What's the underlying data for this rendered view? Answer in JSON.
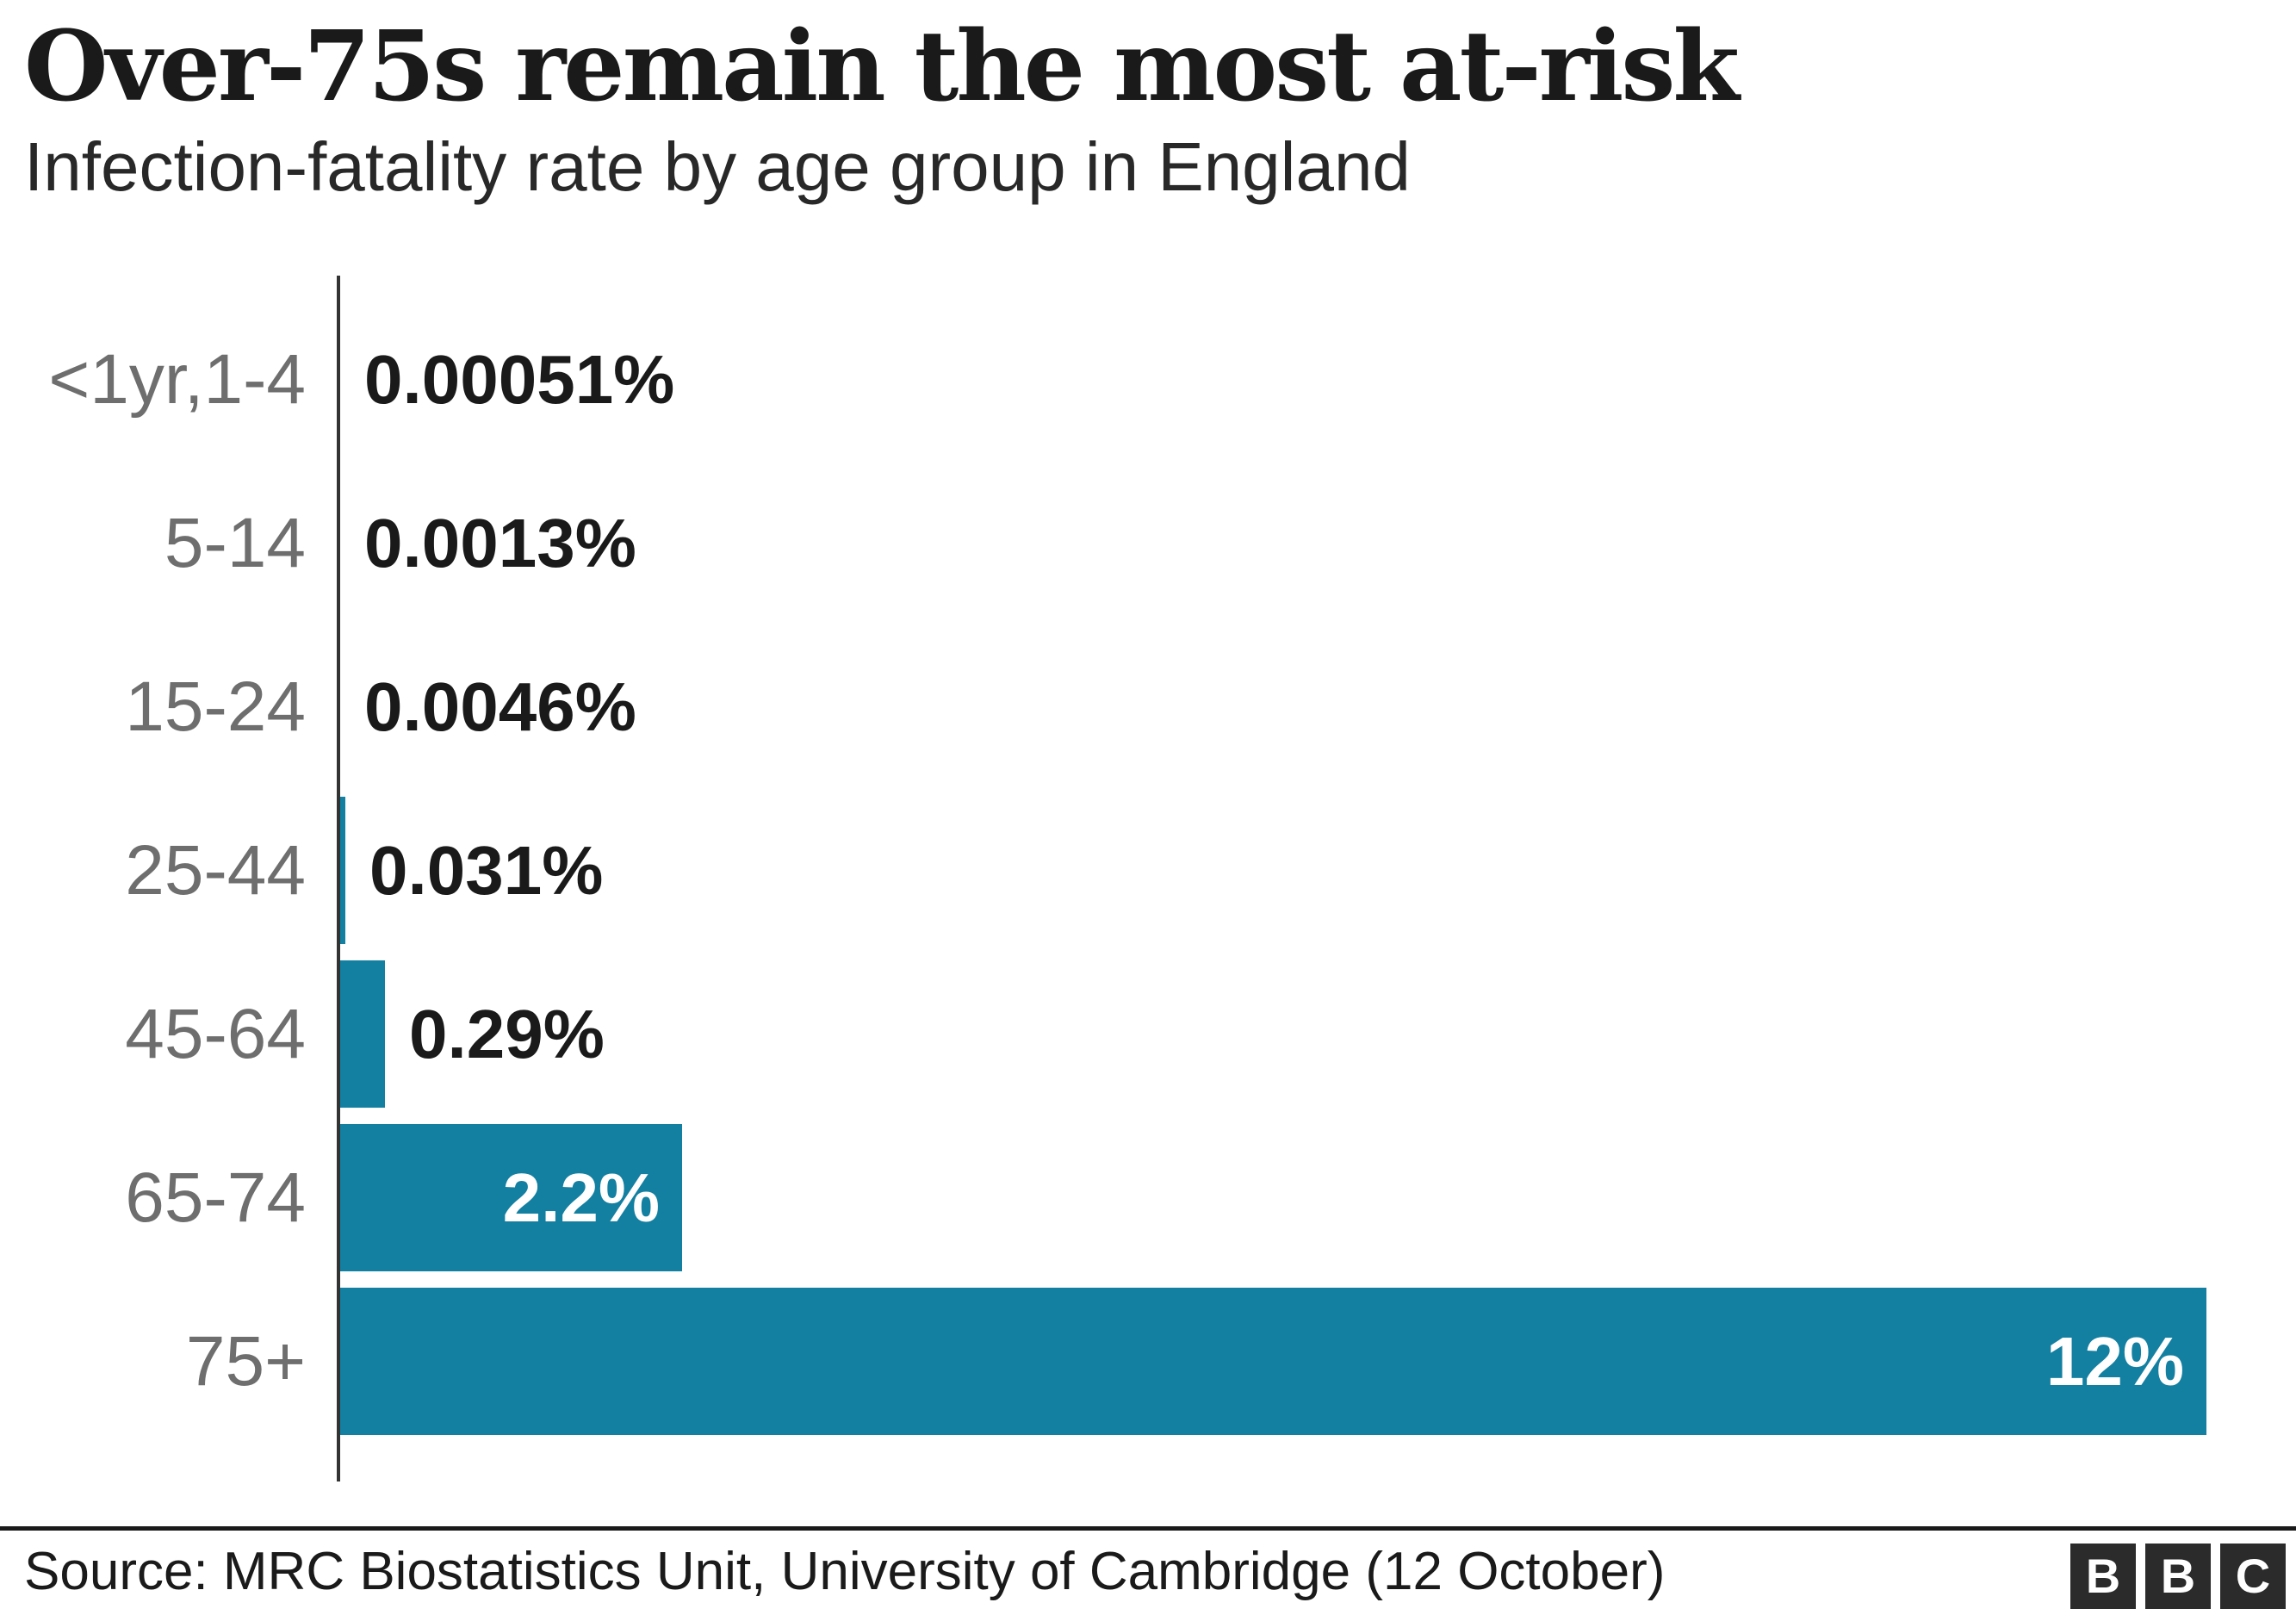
{
  "header": {
    "title": "Over-75s remain the most at-risk",
    "subtitle": "Infection-fatality rate by age group in England"
  },
  "chart_data": {
    "type": "bar",
    "orientation": "horizontal",
    "title": "Over-75s remain the most at-risk",
    "subtitle": "Infection-fatality rate by age group in England",
    "categories": [
      "<1yr,1-4",
      "5-14",
      "15-24",
      "25-44",
      "45-64",
      "65-74",
      "75+"
    ],
    "values": [
      0.00051,
      0.0013,
      0.0046,
      0.031,
      0.29,
      2.2,
      12
    ],
    "value_labels": [
      "0.00051%",
      "0.0013%",
      "0.0046%",
      "0.031%",
      "0.29%",
      "2.2%",
      "12%"
    ],
    "xlabel": "",
    "ylabel": "",
    "xlim": [
      0,
      12
    ],
    "grid": false,
    "legend": false,
    "bar_color": "#1380a1",
    "category_label_color": "#6e6e6e",
    "value_label_color_outside": "#1a1a1a",
    "value_label_color_inside": "#ffffff",
    "axis_color": "#333333"
  },
  "footer": {
    "source": "Source: MRC Biostatistics Unit, University of Cambridge (12 October)",
    "logo_letters": [
      "B",
      "B",
      "C"
    ]
  }
}
